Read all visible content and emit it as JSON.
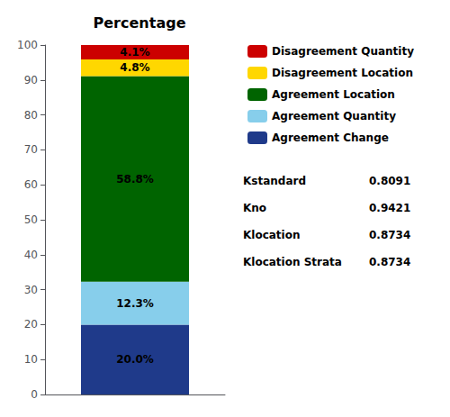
{
  "chart_data": {
    "type": "bar",
    "title": "Percentage",
    "categories": [
      null
    ],
    "stacked": true,
    "data_labels": true,
    "tick_labels": "y",
    "grid": false,
    "legend": "upper right",
    "series": [
      {
        "name": "Agreement Change",
        "color": "#1F3A8A",
        "values": [
          20.0
        ],
        "value_labels": [
          "20.0%"
        ]
      },
      {
        "name": "Agreement Quantity",
        "color": "#87CEEB",
        "values": [
          12.3
        ],
        "value_labels": [
          "12.3%"
        ]
      },
      {
        "name": "Agreement Location",
        "color": "#006400",
        "values": [
          58.8
        ],
        "value_labels": [
          "58.8%"
        ]
      },
      {
        "name": "Disagreement Location",
        "color": "#FFD700",
        "values": [
          4.8
        ],
        "value_labels": [
          "4.8%"
        ]
      },
      {
        "name": "Disagreement Quantity",
        "color": "#CC0000",
        "values": [
          4.1
        ],
        "value_labels": [
          "4.1%"
        ]
      }
    ],
    "ylim": [
      0,
      100
    ],
    "yticks": [
      0,
      10,
      20,
      30,
      40,
      50,
      60,
      70,
      80,
      90,
      100
    ],
    "annotations": [
      {
        "label": "Kstandard",
        "value": 0.8091
      },
      {
        "label": "Kno",
        "value": 0.9421
      },
      {
        "label": "Klocation",
        "value": 0.8734
      },
      {
        "label": "Klocation Strata",
        "value": 0.8734
      }
    ]
  }
}
